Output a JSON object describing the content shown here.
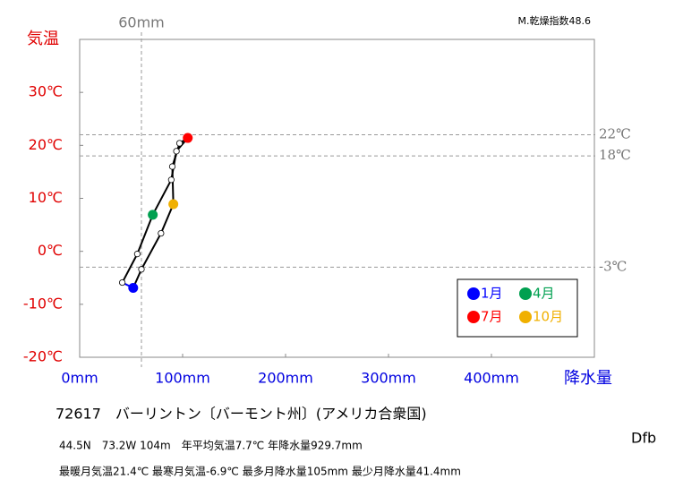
{
  "chart_data": {
    "type": "climograph",
    "y_axis_title": "気温",
    "x_axis_title": "降水量",
    "aridity_index": "M.乾燥指数48.6",
    "station": "72617　バーリントン〔バーモント州〕(アメリカ合衆国)",
    "info_lines": [
      "44.5N　73.2W 104m　年平均気温7.7℃ 年降水量929.7mm",
      "最暖月気温21.4℃ 最寒月気温-6.9℃ 最多月降水量105mm 最少月降水量41.4mm"
    ],
    "climate_class": "Dfb",
    "x": [
      52,
      41.4,
      56,
      71,
      89,
      94,
      105,
      97,
      90,
      91,
      79,
      60
    ],
    "y": [
      -6.9,
      -5.9,
      -0.5,
      6.9,
      13.5,
      18.9,
      21.4,
      20.4,
      16.0,
      8.9,
      3.4,
      -3.4
    ],
    "point_colors": [
      "#0000ff",
      "#ffffff",
      "#ffffff",
      "#00a050",
      "#ffffff",
      "#ffffff",
      "#ff0000",
      "#ffffff",
      "#ffffff",
      "#f0b000",
      "#ffffff",
      "#ffffff"
    ],
    "line_color": "#000000",
    "legend": [
      {
        "name": "1月",
        "color": "#0000ff"
      },
      {
        "name": "4月",
        "color": "#00a050"
      },
      {
        "name": "7月",
        "color": "#ff0000"
      },
      {
        "name": "10月",
        "color": "#f0b000"
      }
    ],
    "xlim": [
      0,
      500
    ],
    "ylim": [
      -20,
      40
    ],
    "xticks": [
      {
        "value": 0,
        "label": "0mm"
      },
      {
        "value": 100,
        "label": "100mm"
      },
      {
        "value": 200,
        "label": "200mm"
      },
      {
        "value": 300,
        "label": "300mm"
      },
      {
        "value": 400,
        "label": "400mm"
      }
    ],
    "yticks": [
      {
        "value": -20,
        "label": "-20℃"
      },
      {
        "value": -10,
        "label": "-10℃"
      },
      {
        "value": 0,
        "label": "0℃"
      },
      {
        "value": 10,
        "label": "10℃"
      },
      {
        "value": 20,
        "label": "20℃"
      },
      {
        "value": 30,
        "label": "30℃"
      }
    ],
    "reference_lines": [
      {
        "value": 22,
        "label": "22℃"
      },
      {
        "value": 18,
        "label": "18℃"
      },
      {
        "value": -3,
        "label": "-3℃"
      }
    ],
    "reference_vline": {
      "value": 60,
      "label": "60mm"
    }
  }
}
